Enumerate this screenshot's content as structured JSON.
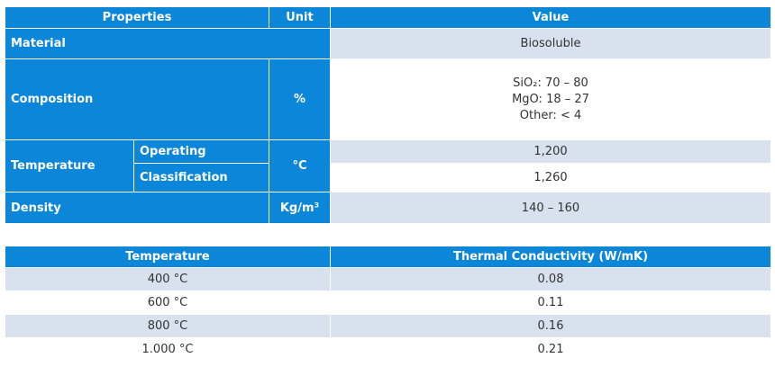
{
  "table1": {
    "header": [
      "Properties",
      "Unit",
      "Value"
    ],
    "material": {
      "label": "Material",
      "value": "Biosoluble"
    },
    "composition": {
      "label": "Composition",
      "unit": "%",
      "value": [
        "SiO₂: 70 – 80",
        "MgO: 18 – 27",
        "Other: < 4"
      ]
    },
    "temperature": {
      "label": "Temperature",
      "unit": "°C",
      "operating": {
        "label": "Operating",
        "value": "1,200"
      },
      "classification": {
        "label": "Classification",
        "value": "1,260"
      }
    },
    "density": {
      "label": "Density",
      "unit": "Kg/m³",
      "value": "140 – 160"
    }
  },
  "table2": {
    "header": [
      "Temperature",
      "Thermal Conductivity (W/mK)"
    ],
    "rows": [
      [
        "400 °C",
        "0.08"
      ],
      [
        "600 °C",
        "0.11"
      ],
      [
        "800 °C",
        "0.16"
      ],
      [
        "1.000 °C",
        "0.21"
      ]
    ]
  }
}
